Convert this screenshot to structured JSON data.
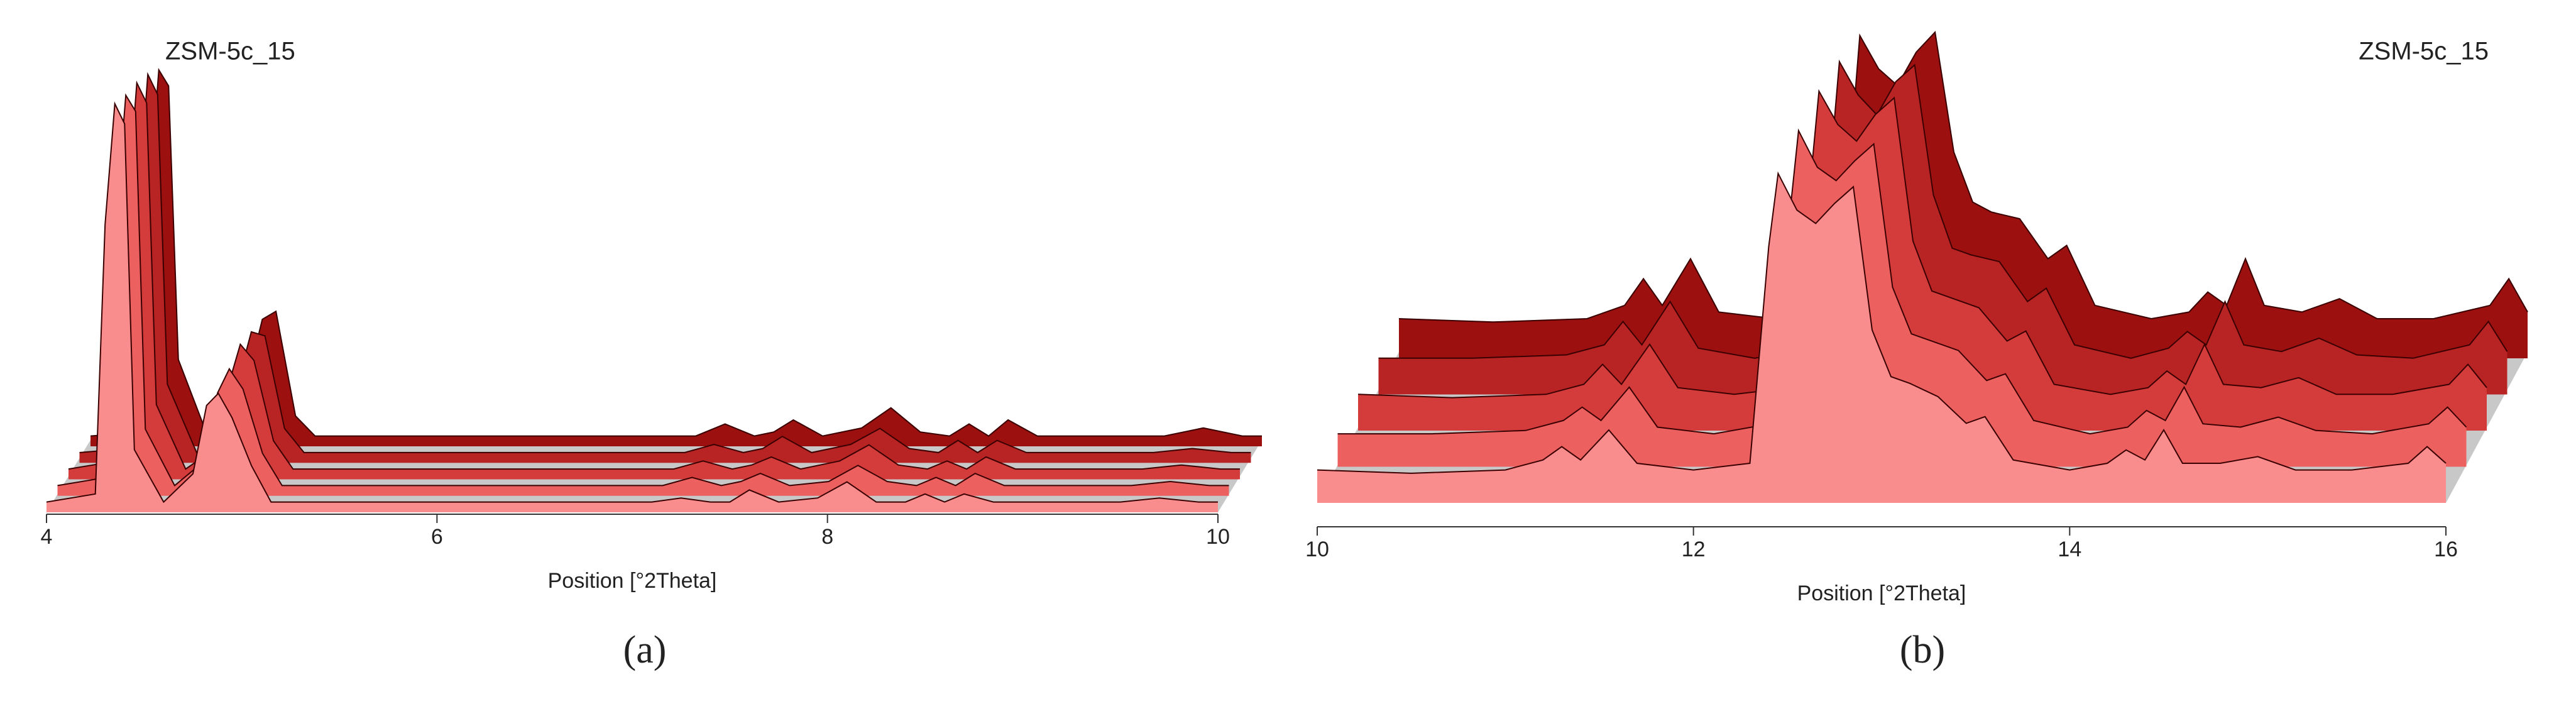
{
  "chart_data": [
    {
      "type": "area",
      "title": "ZSM-5c_15",
      "x_label": "Position [°2Theta]",
      "panel_label": "(a)",
      "x": [
        4.0,
        4.25,
        4.3,
        4.35,
        4.4,
        4.45,
        4.6,
        4.75,
        4.82,
        4.88,
        4.95,
        5.05,
        5.15,
        5.5,
        6.5,
        7.1,
        7.25,
        7.4,
        7.5,
        7.6,
        7.75,
        7.95,
        8.1,
        8.25,
        8.4,
        8.5,
        8.6,
        8.7,
        8.85,
        9.5,
        9.7,
        9.9,
        10.0
      ],
      "xlim": [
        4,
        10
      ],
      "xticks": [
        4,
        6,
        8,
        10
      ],
      "ylim": [
        0,
        100
      ],
      "series": [
        {
          "color": "#9c1010",
          "values": [
            1,
            2,
            60,
            92,
            88,
            20,
            1,
            4,
            18,
            30,
            32,
            6,
            1,
            1,
            1,
            1,
            4,
            1,
            2,
            5,
            1,
            3,
            8,
            2,
            1,
            4,
            1,
            5,
            1,
            1,
            3,
            1,
            1
          ]
        },
        {
          "color": "#b82323",
          "values": [
            1,
            2,
            62,
            95,
            90,
            18,
            1,
            5,
            20,
            31,
            30,
            7,
            1,
            1,
            1,
            1,
            3,
            1,
            2,
            5,
            1,
            3,
            7,
            2,
            1,
            4,
            1,
            4,
            1,
            1,
            2,
            1,
            1
          ]
        },
        {
          "color": "#d43c3c",
          "values": [
            1,
            3,
            65,
            97,
            92,
            17,
            1,
            6,
            22,
            32,
            28,
            8,
            1,
            1,
            1,
            1,
            3,
            1,
            2,
            4,
            1,
            3,
            7,
            2,
            1,
            3,
            1,
            4,
            1,
            1,
            2,
            1,
            1
          ]
        },
        {
          "color": "#ec6060",
          "values": [
            1,
            3,
            68,
            98,
            94,
            15,
            1,
            7,
            24,
            30,
            25,
            9,
            1,
            1,
            1,
            1,
            3,
            1,
            2,
            4,
            1,
            2,
            6,
            2,
            1,
            3,
            1,
            4,
            1,
            1,
            2,
            1,
            1
          ]
        },
        {
          "color": "#f98c8c",
          "values": [
            1,
            3,
            70,
            100,
            95,
            14,
            1,
            8,
            25,
            28,
            22,
            10,
            1,
            1,
            1,
            1,
            2,
            1,
            1,
            4,
            1,
            2,
            6,
            1,
            1,
            3,
            1,
            3,
            1,
            1,
            2,
            1,
            1
          ]
        }
      ]
    },
    {
      "type": "area",
      "title": "ZSM-5c_15",
      "x_label": "Position [°2Theta]",
      "panel_label": "(b)",
      "x": [
        10.0,
        10.5,
        11.0,
        11.2,
        11.3,
        11.4,
        11.55,
        11.7,
        12.0,
        12.3,
        12.4,
        12.45,
        12.55,
        12.65,
        12.75,
        12.85,
        12.95,
        13.05,
        13.15,
        13.3,
        13.45,
        13.55,
        13.7,
        14.0,
        14.2,
        14.3,
        14.4,
        14.5,
        14.6,
        14.8,
        15.0,
        15.2,
        15.5,
        15.8,
        15.9,
        16.0
      ],
      "xlim": [
        10,
        16
      ],
      "xticks": [
        10,
        12,
        14,
        16
      ],
      "ylim": [
        0,
        100
      ],
      "series": [
        {
          "color": "#9c1010",
          "values": [
            10,
            9,
            10,
            14,
            22,
            14,
            28,
            12,
            10,
            12,
            60,
            95,
            85,
            80,
            90,
            96,
            60,
            45,
            42,
            40,
            28,
            32,
            14,
            10,
            12,
            18,
            14,
            28,
            14,
            12,
            16,
            10,
            10,
            14,
            22,
            12
          ]
        },
        {
          "color": "#b82323",
          "values": [
            9,
            9,
            10,
            13,
            20,
            13,
            26,
            12,
            9,
            12,
            65,
            98,
            88,
            82,
            92,
            97,
            58,
            42,
            40,
            38,
            26,
            30,
            13,
            9,
            12,
            17,
            13,
            26,
            13,
            11,
            15,
            10,
            9,
            13,
            20,
            11
          ]
        },
        {
          "color": "#d43c3c",
          "values": [
            9,
            8,
            9,
            12,
            18,
            12,
            24,
            11,
            9,
            11,
            70,
            100,
            90,
            85,
            93,
            98,
            55,
            40,
            38,
            35,
            25,
            28,
            12,
            9,
            11,
            16,
            12,
            24,
            12,
            11,
            14,
            9,
            9,
            12,
            18,
            11
          ]
        },
        {
          "color": "#ec6060",
          "values": [
            8,
            8,
            9,
            12,
            16,
            12,
            22,
            10,
            8,
            11,
            72,
            99,
            88,
            84,
            90,
            95,
            52,
            38,
            36,
            33,
            24,
            26,
            12,
            8,
            10,
            15,
            12,
            22,
            11,
            10,
            13,
            9,
            8,
            11,
            16,
            10
          ]
        },
        {
          "color": "#f98c8c",
          "values": [
            8,
            7,
            8,
            11,
            15,
            11,
            20,
            10,
            8,
            10,
            75,
            97,
            86,
            82,
            88,
            93,
            50,
            36,
            34,
            30,
            22,
            24,
            11,
            8,
            10,
            14,
            11,
            20,
            10,
            10,
            12,
            8,
            8,
            10,
            15,
            10
          ]
        }
      ]
    }
  ]
}
